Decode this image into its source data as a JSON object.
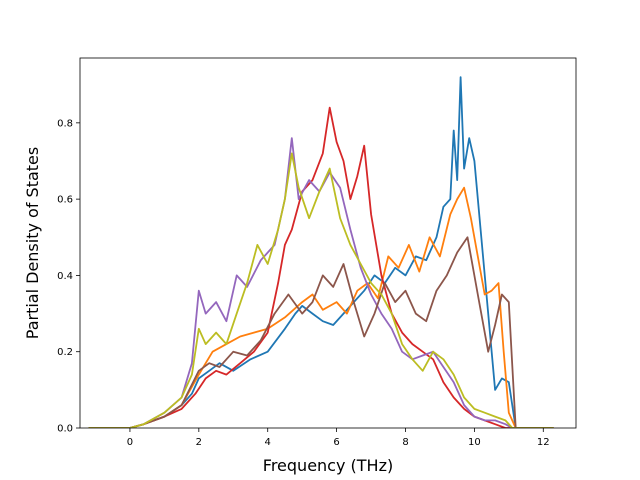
{
  "chart_data": {
    "type": "line",
    "title": "",
    "xlabel": "Frequency (THz)",
    "ylabel": "Partial Density of States",
    "xlim": [
      -1.45,
      12.95
    ],
    "ylim": [
      0.0,
      0.97
    ],
    "xticks": [
      0,
      2,
      4,
      6,
      8,
      10,
      12
    ],
    "yticks": [
      0.0,
      0.2,
      0.4,
      0.6,
      0.8
    ],
    "xtick_labels": [
      "0",
      "2",
      "4",
      "6",
      "8",
      "10",
      "12"
    ],
    "ytick_labels": [
      "0.0",
      "0.2",
      "0.4",
      "0.6",
      "0.8"
    ],
    "grid": false,
    "legend": "none",
    "series": [
      {
        "color": "#1f77b4",
        "x": [
          -1.2,
          0.0,
          0.4,
          1.0,
          1.5,
          1.8,
          2.0,
          2.3,
          2.6,
          3.0,
          3.5,
          4.0,
          4.5,
          4.8,
          5.0,
          5.3,
          5.6,
          5.9,
          6.2,
          6.5,
          6.8,
          7.1,
          7.4,
          7.7,
          8.0,
          8.3,
          8.6,
          8.9,
          9.1,
          9.3,
          9.4,
          9.5,
          9.6,
          9.7,
          9.85,
          10.0,
          10.2,
          10.4,
          10.6,
          10.8,
          11.0,
          11.2,
          12.3
        ],
        "y": [
          0.0,
          0.0,
          0.01,
          0.03,
          0.06,
          0.09,
          0.13,
          0.15,
          0.17,
          0.15,
          0.18,
          0.2,
          0.26,
          0.3,
          0.32,
          0.3,
          0.28,
          0.27,
          0.3,
          0.33,
          0.36,
          0.4,
          0.38,
          0.42,
          0.4,
          0.45,
          0.44,
          0.5,
          0.58,
          0.6,
          0.78,
          0.65,
          0.92,
          0.68,
          0.76,
          0.7,
          0.5,
          0.3,
          0.1,
          0.13,
          0.12,
          0.0,
          0.0
        ]
      },
      {
        "color": "#ff7f0e",
        "x": [
          -1.2,
          0.0,
          0.4,
          1.0,
          1.5,
          2.0,
          2.4,
          2.8,
          3.2,
          3.6,
          4.0,
          4.5,
          5.0,
          5.3,
          5.6,
          6.0,
          6.3,
          6.6,
          6.9,
          7.2,
          7.5,
          7.8,
          8.1,
          8.4,
          8.7,
          9.0,
          9.3,
          9.5,
          9.7,
          9.9,
          10.1,
          10.3,
          10.5,
          10.7,
          10.85,
          11.0,
          11.2,
          12.3
        ],
        "y": [
          0.0,
          0.0,
          0.01,
          0.03,
          0.06,
          0.14,
          0.2,
          0.22,
          0.24,
          0.25,
          0.26,
          0.29,
          0.33,
          0.35,
          0.31,
          0.33,
          0.3,
          0.36,
          0.38,
          0.34,
          0.45,
          0.42,
          0.48,
          0.41,
          0.5,
          0.45,
          0.56,
          0.6,
          0.63,
          0.55,
          0.45,
          0.35,
          0.36,
          0.38,
          0.2,
          0.04,
          0.0,
          0.0
        ]
      },
      {
        "color": "#d62728",
        "x": [
          -1.2,
          0.0,
          0.4,
          1.0,
          1.5,
          1.9,
          2.2,
          2.5,
          2.8,
          3.2,
          3.6,
          4.0,
          4.3,
          4.5,
          4.7,
          5.0,
          5.3,
          5.6,
          5.8,
          6.0,
          6.2,
          6.4,
          6.6,
          6.8,
          7.0,
          7.3,
          7.6,
          7.9,
          8.2,
          8.5,
          8.8,
          9.1,
          9.4,
          9.7,
          10.0,
          10.3,
          10.6,
          10.9,
          12.3
        ],
        "y": [
          0.0,
          0.0,
          0.01,
          0.03,
          0.05,
          0.09,
          0.13,
          0.15,
          0.14,
          0.17,
          0.2,
          0.25,
          0.38,
          0.48,
          0.52,
          0.62,
          0.65,
          0.72,
          0.84,
          0.75,
          0.7,
          0.6,
          0.66,
          0.74,
          0.56,
          0.4,
          0.3,
          0.25,
          0.22,
          0.2,
          0.18,
          0.12,
          0.08,
          0.05,
          0.03,
          0.02,
          0.01,
          0.0,
          0.0
        ]
      },
      {
        "color": "#9467bd",
        "x": [
          -1.2,
          0.0,
          0.4,
          1.0,
          1.5,
          1.8,
          2.0,
          2.2,
          2.5,
          2.8,
          3.1,
          3.4,
          3.8,
          4.2,
          4.5,
          4.7,
          4.9,
          5.2,
          5.5,
          5.8,
          6.1,
          6.4,
          6.7,
          7.0,
          7.3,
          7.6,
          7.9,
          8.2,
          8.5,
          8.8,
          9.1,
          9.4,
          9.7,
          10.0,
          10.3,
          10.6,
          10.9,
          11.1,
          12.3
        ],
        "y": [
          0.0,
          0.0,
          0.01,
          0.04,
          0.08,
          0.17,
          0.36,
          0.3,
          0.33,
          0.28,
          0.4,
          0.37,
          0.44,
          0.48,
          0.6,
          0.76,
          0.6,
          0.65,
          0.62,
          0.67,
          0.63,
          0.52,
          0.42,
          0.35,
          0.3,
          0.26,
          0.2,
          0.18,
          0.19,
          0.2,
          0.16,
          0.12,
          0.06,
          0.03,
          0.02,
          0.02,
          0.01,
          0.0,
          0.0
        ]
      },
      {
        "color": "#8c564b",
        "x": [
          -1.2,
          0.0,
          0.4,
          1.0,
          1.5,
          2.0,
          2.3,
          2.6,
          3.0,
          3.4,
          3.8,
          4.2,
          4.6,
          5.0,
          5.3,
          5.6,
          5.9,
          6.2,
          6.5,
          6.8,
          7.1,
          7.4,
          7.7,
          8.0,
          8.3,
          8.6,
          8.9,
          9.2,
          9.5,
          9.8,
          10.1,
          10.4,
          10.6,
          10.8,
          11.0,
          11.2,
          12.3
        ],
        "y": [
          0.0,
          0.0,
          0.01,
          0.03,
          0.06,
          0.15,
          0.17,
          0.16,
          0.2,
          0.19,
          0.23,
          0.3,
          0.35,
          0.3,
          0.33,
          0.4,
          0.37,
          0.43,
          0.33,
          0.24,
          0.3,
          0.38,
          0.33,
          0.36,
          0.3,
          0.28,
          0.36,
          0.4,
          0.46,
          0.5,
          0.35,
          0.2,
          0.27,
          0.35,
          0.33,
          0.0,
          0.0
        ]
      },
      {
        "color": "#bcbd22",
        "x": [
          -1.2,
          0.0,
          0.4,
          1.0,
          1.5,
          1.8,
          2.0,
          2.2,
          2.5,
          2.8,
          3.1,
          3.4,
          3.7,
          4.0,
          4.3,
          4.5,
          4.7,
          4.9,
          5.2,
          5.5,
          5.8,
          6.1,
          6.4,
          6.7,
          7.0,
          7.3,
          7.6,
          7.9,
          8.2,
          8.5,
          8.8,
          9.1,
          9.4,
          9.7,
          10.0,
          10.3,
          10.6,
          10.9,
          11.1,
          12.3
        ],
        "y": [
          0.0,
          0.0,
          0.01,
          0.04,
          0.08,
          0.14,
          0.26,
          0.22,
          0.25,
          0.22,
          0.3,
          0.38,
          0.48,
          0.43,
          0.52,
          0.6,
          0.72,
          0.63,
          0.55,
          0.62,
          0.68,
          0.55,
          0.48,
          0.43,
          0.38,
          0.35,
          0.3,
          0.22,
          0.18,
          0.15,
          0.2,
          0.18,
          0.14,
          0.08,
          0.05,
          0.04,
          0.03,
          0.02,
          0.0,
          0.0
        ]
      }
    ]
  }
}
